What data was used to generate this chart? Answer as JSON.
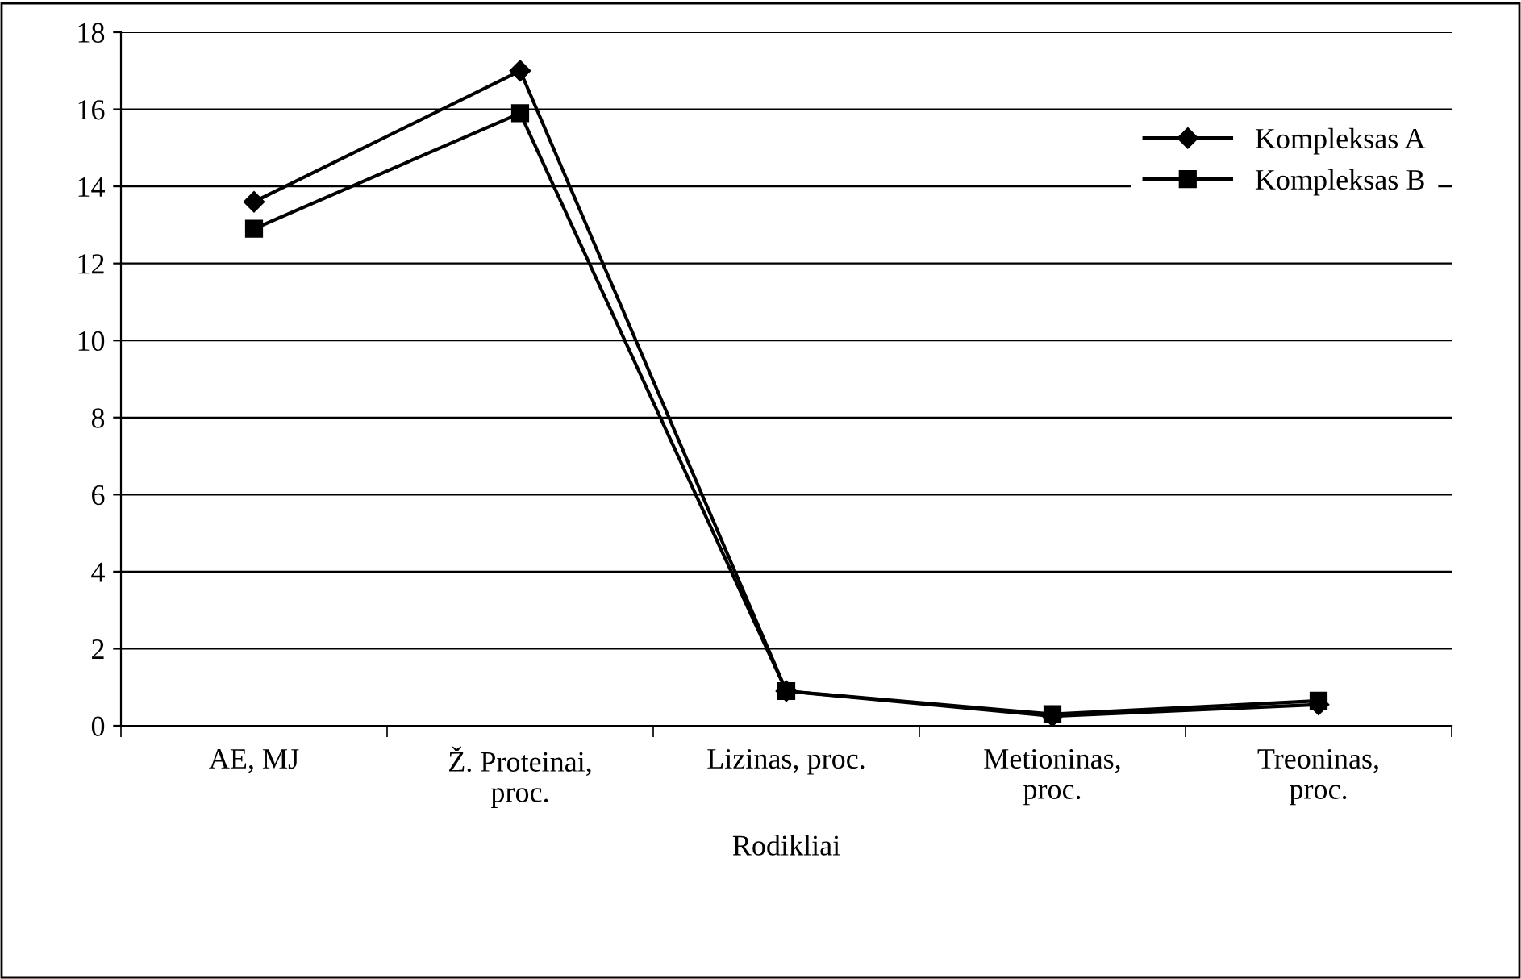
{
  "chart_data": {
    "type": "line",
    "xlabel": "Rodikliai",
    "categories": [
      "AE, MJ",
      "Ž. Proteinai,\nproc.",
      "Lizinas, proc.",
      "Metioninas,\nproc.",
      "Treoninas,\nproc."
    ],
    "series": [
      {
        "name": "Kompleksas A",
        "color": "#000000",
        "marker": "diamond",
        "values": [
          13.6,
          17.0,
          0.9,
          0.25,
          0.55
        ]
      },
      {
        "name": "Kompleksas B",
        "color": "#000000",
        "marker": "square",
        "values": [
          12.9,
          15.9,
          0.9,
          0.3,
          0.65
        ]
      }
    ],
    "ylim": [
      0,
      18
    ],
    "yticks": [
      0,
      2,
      4,
      6,
      8,
      10,
      12,
      14,
      16,
      18
    ],
    "grid": "y",
    "legend": "top right",
    "line_style": "solid"
  }
}
